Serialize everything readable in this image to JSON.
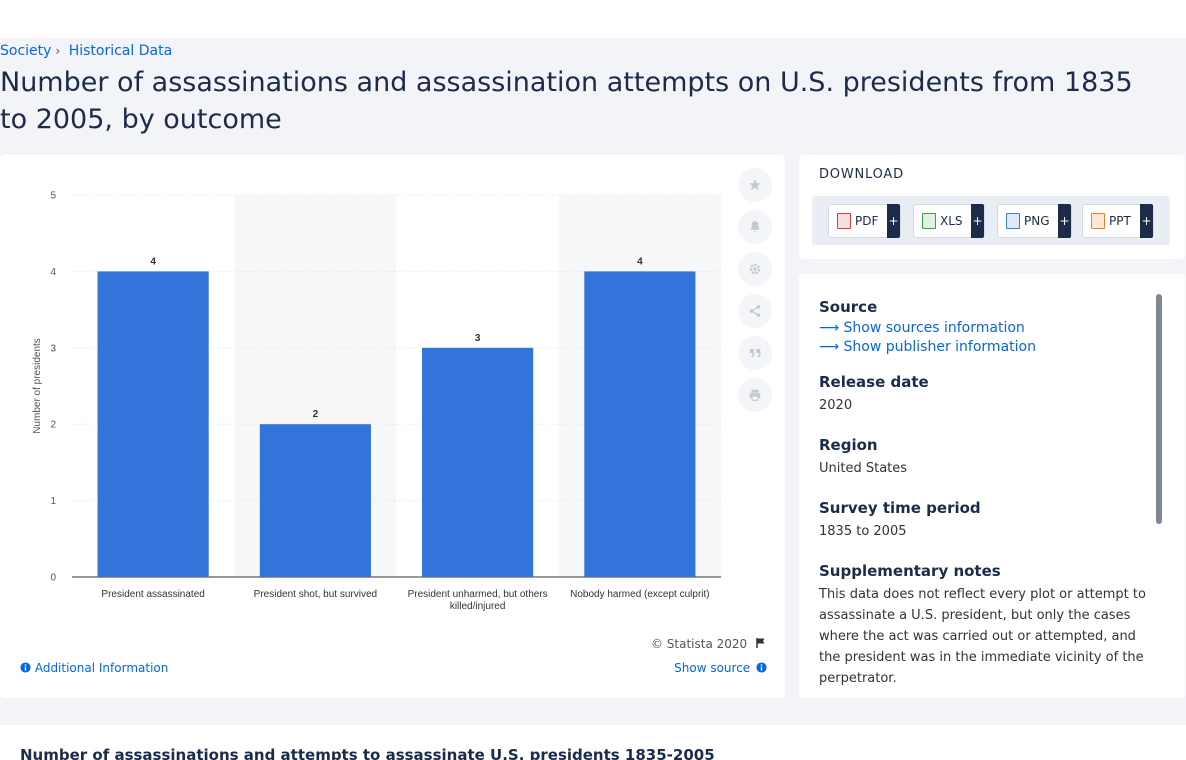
{
  "breadcrumb": {
    "item1": "Society",
    "item2": "Historical Data"
  },
  "page_title": "Number of assassinations and assassination attempts on U.S. presidents from 1835 to 2005, by outcome",
  "chart_data": {
    "type": "bar",
    "categories": [
      "President assassinated",
      "President shot, but survived",
      "President unharmed, but others killed/injured",
      "Nobody harmed (except culprit)"
    ],
    "category_lines": [
      [
        "President assassinated"
      ],
      [
        "President shot, but survived"
      ],
      [
        "President unharmed, but others",
        "killed/injured"
      ],
      [
        "Nobody harmed (except culprit)"
      ]
    ],
    "values": [
      4,
      2,
      3,
      4
    ],
    "ylabel": "Number of presidents",
    "xlabel": "",
    "ylim": [
      0,
      5
    ],
    "yticks": [
      0,
      1,
      2,
      3,
      4,
      5
    ],
    "grid": true,
    "bar_color": "#3274d9",
    "band_color": "#f7f8fa"
  },
  "chart_footer": {
    "copyright": "© Statista 2020",
    "additional_info": "Additional Information",
    "show_source": "Show source"
  },
  "download": {
    "title": "DOWNLOAD",
    "buttons": [
      {
        "label": "PDF",
        "plus": "+",
        "color": "#e23b3b"
      },
      {
        "label": "XLS",
        "plus": "+",
        "color": "#3e9c48"
      },
      {
        "label": "PNG",
        "plus": "+",
        "color": "#3e7ccc"
      },
      {
        "label": "PPT",
        "plus": "+",
        "color": "#e8812b"
      }
    ]
  },
  "info": {
    "source_heading": "Source",
    "show_sources": "Show sources information",
    "show_publisher": "Show publisher information",
    "release_heading": "Release date",
    "release_value": "2020",
    "region_heading": "Region",
    "region_value": "United States",
    "survey_heading": "Survey time period",
    "survey_value": "1835 to 2005",
    "notes_heading": "Supplementary notes",
    "notes_value": "This data does not reflect every plot or attempt to assassinate a U.S. president, but only the cases where the act was carried out or attempted, and the president was in the immediate vicinity of the perpetrator."
  },
  "bottom_title": "Number of assassinations and attempts to assassinate U.S. presidents 1835-2005",
  "icons": [
    "star-icon",
    "bell-icon",
    "gear-icon",
    "share-icon",
    "quote-icon",
    "print-icon",
    "flag-icon",
    "info-icon",
    "arrow-right-icon"
  ]
}
